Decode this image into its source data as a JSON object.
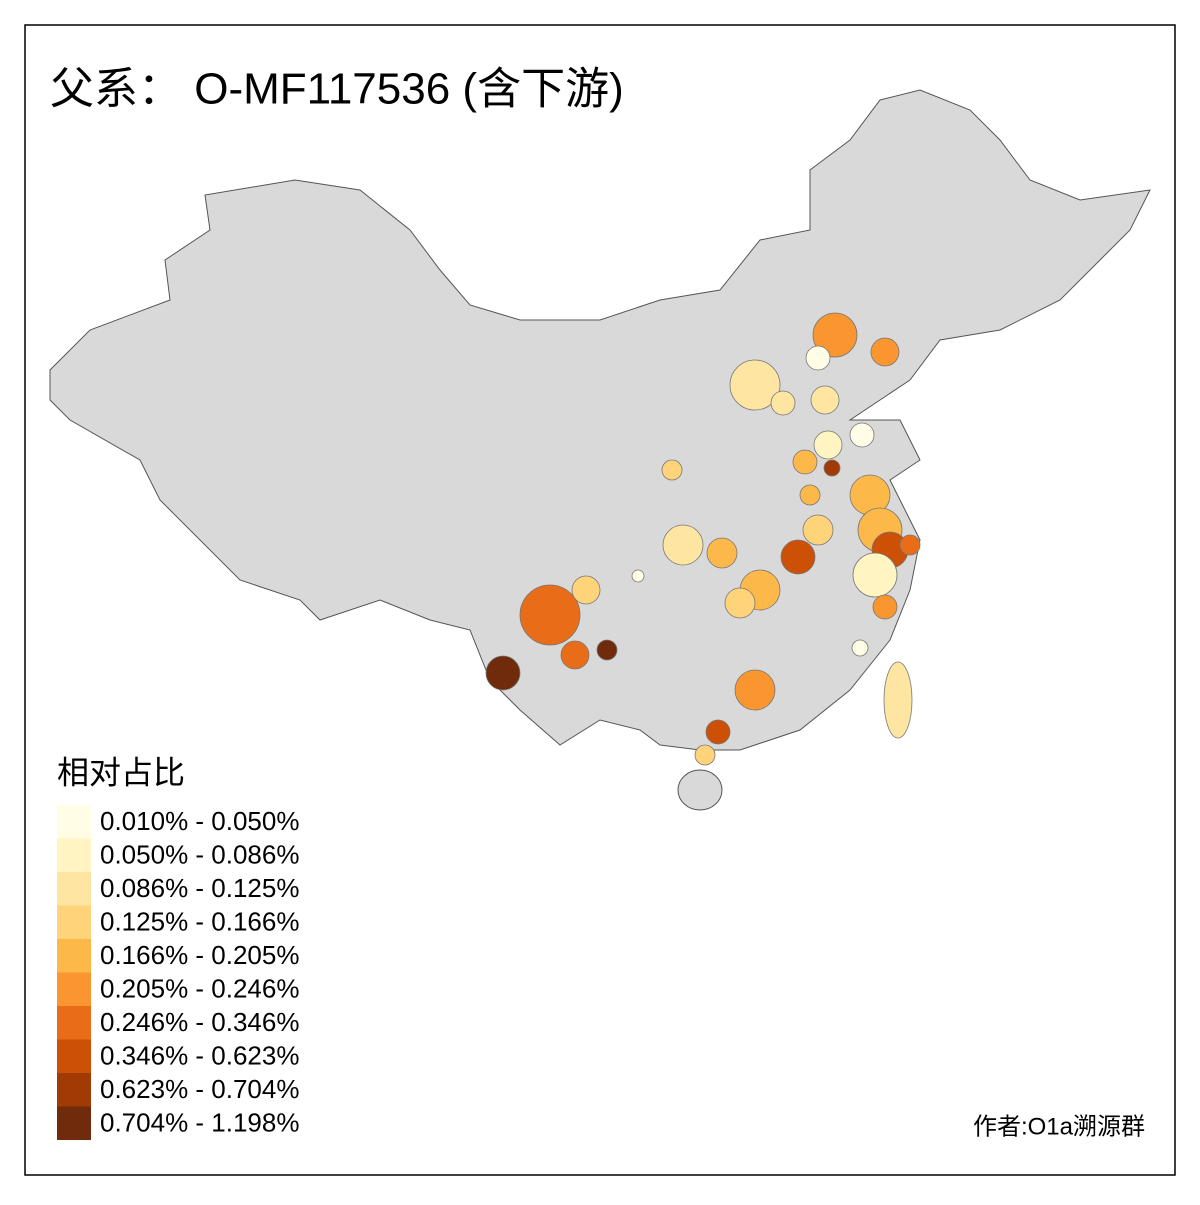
{
  "title": "父系： O-MF117536 (含下游)",
  "legend": {
    "title": "相对占比",
    "items": [
      {
        "label": "0.010% - 0.050%",
        "color": "#fffde6"
      },
      {
        "label": "0.050% - 0.086%",
        "color": "#fff4c2"
      },
      {
        "label": "0.086% - 0.125%",
        "color": "#fee6a2"
      },
      {
        "label": "0.125% - 0.166%",
        "color": "#fed37a"
      },
      {
        "label": "0.166% - 0.205%",
        "color": "#fdb84a"
      },
      {
        "label": "0.205% - 0.246%",
        "color": "#f99630"
      },
      {
        "label": "0.246% - 0.346%",
        "color": "#e96d18"
      },
      {
        "label": "0.346% - 0.623%",
        "color": "#cc5006"
      },
      {
        "label": "0.623% - 0.704%",
        "color": "#a23a05"
      },
      {
        "label": "0.704% - 1.198%",
        "color": "#702a0c"
      }
    ]
  },
  "author": "作者:O1a溯源群"
}
